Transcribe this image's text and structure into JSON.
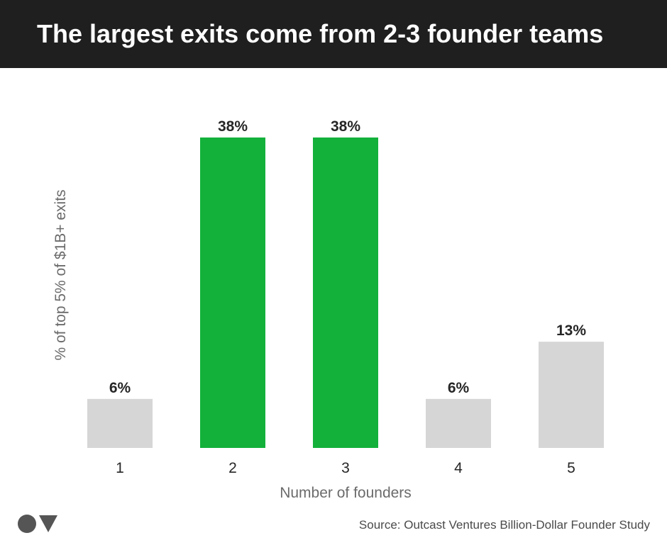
{
  "header": {
    "title": "The largest exits come from 2-3 founder teams"
  },
  "chart_data": {
    "type": "bar",
    "categories": [
      "1",
      "2",
      "3",
      "4",
      "5"
    ],
    "values": [
      6,
      38,
      38,
      6,
      13
    ],
    "value_labels": [
      "6%",
      "38%",
      "38%",
      "6%",
      "13%"
    ],
    "highlighted": [
      false,
      true,
      true,
      false,
      false
    ],
    "title": "The largest exits come from 2-3 founder teams",
    "xlabel": "Number of founders",
    "ylabel": "% of top 5% of $1B+ exits",
    "ylim": [
      0,
      38
    ],
    "grid": false,
    "legend": "none",
    "colors": {
      "highlight": "#13b13a",
      "default": "#d6d6d6",
      "value_label": "#262626",
      "tick_label": "#262626"
    }
  },
  "footer": {
    "source": "Source: Outcast Ventures Billion-Dollar Founder Study",
    "logo_icon": "outcast-ventures-logo-icon"
  }
}
